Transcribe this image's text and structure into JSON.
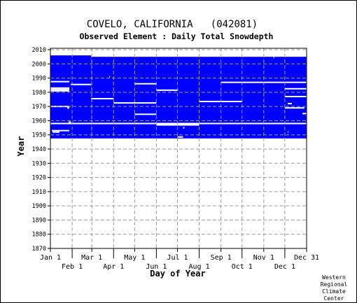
{
  "chart_data": {
    "type": "heatmap",
    "title": "COVELO, CALIFORNIA   (042081)",
    "subtitle": "Observed Element : Daily Total Snowdepth",
    "xlabel": "Day of Year",
    "ylabel": "Year",
    "xlim": [
      1,
      366
    ],
    "ylim": [
      1870,
      2011
    ],
    "y_ticks": [
      1870,
      1880,
      1890,
      1900,
      1910,
      1920,
      1930,
      1940,
      1950,
      1960,
      1970,
      1980,
      1990,
      2000,
      2010
    ],
    "x_ticks_top_row": [
      {
        "label": "Jan 1",
        "day": 1
      },
      {
        "label": "Mar 1",
        "day": 60
      },
      {
        "label": "May 1",
        "day": 121
      },
      {
        "label": "Jul 1",
        "day": 182
      },
      {
        "label": "Sep 1",
        "day": 244
      },
      {
        "label": "Nov 1",
        "day": 305
      },
      {
        "label": "Dec 31",
        "day": 366
      }
    ],
    "x_ticks_bottom_row": [
      {
        "label": "Feb 1",
        "day": 32
      },
      {
        "label": "Apr 1",
        "day": 91
      },
      {
        "label": "Jun 1",
        "day": 152
      },
      {
        "label": "Aug 1",
        "day": 213
      },
      {
        "label": "Oct 1",
        "day": 274
      },
      {
        "label": "Dec 1",
        "day": 335
      }
    ],
    "grid": true,
    "data_color": "#0000ff",
    "coverage_blocks": [
      {
        "day_start": 1,
        "day_end": 59,
        "year_start": 1947.5,
        "year_end": 2006
      },
      {
        "day_start": 59,
        "day_end": 366,
        "year_start": 1947.5,
        "year_end": 2005
      }
    ],
    "missing_segments": [
      {
        "year": 1987.5,
        "day_start": 1,
        "day_end": 28
      },
      {
        "year": 1985.5,
        "day_start": 30,
        "day_end": 59
      },
      {
        "year": 1983,
        "day_start": 1,
        "day_end": 28
      },
      {
        "year": 1982,
        "day_start": 1,
        "day_end": 28
      },
      {
        "year": 1981,
        "day_start": 1,
        "day_end": 28
      },
      {
        "year": 1970,
        "day_start": 1,
        "day_end": 28
      },
      {
        "year": 1969,
        "day_start": 25,
        "day_end": 28
      },
      {
        "year": 1958,
        "day_start": 1,
        "day_end": 366
      },
      {
        "year": 1959,
        "day_start": 27,
        "day_end": 30
      },
      {
        "year": 1953,
        "day_start": 3,
        "day_end": 28
      },
      {
        "year": 1952,
        "day_start": 4,
        "day_end": 14
      },
      {
        "year": 1975.5,
        "day_start": 59,
        "day_end": 91
      },
      {
        "year": 1972.5,
        "day_start": 91,
        "day_end": 152
      },
      {
        "year": 1986,
        "day_start": 121,
        "day_end": 152
      },
      {
        "year": 1964.5,
        "day_start": 121,
        "day_end": 152
      },
      {
        "year": 1981.5,
        "day_start": 152,
        "day_end": 183
      },
      {
        "year": 1957,
        "day_start": 152,
        "day_end": 213
      },
      {
        "year": 1955,
        "day_start": 190,
        "day_end": 192
      },
      {
        "year": 1948.5,
        "day_start": 182,
        "day_end": 190
      },
      {
        "year": 1973.5,
        "day_start": 213,
        "day_end": 274
      },
      {
        "year": 1987,
        "day_start": 244,
        "day_end": 366
      },
      {
        "year": 1982.5,
        "day_start": 335,
        "day_end": 366
      },
      {
        "year": 1977,
        "day_start": 335,
        "day_end": 366
      },
      {
        "year": 1969,
        "day_start": 335,
        "day_end": 363
      },
      {
        "year": 1972,
        "day_start": 339,
        "day_end": 345
      },
      {
        "year": 1965,
        "day_start": 360,
        "day_end": 366
      },
      {
        "year": 1991,
        "day_start": 85,
        "day_end": 86
      },
      {
        "year": 1952,
        "day_start": 339,
        "day_end": 340
      },
      {
        "year": 2004.5,
        "day_start": 319,
        "day_end": 320
      }
    ]
  },
  "footer": {
    "line1": "Western",
    "line2": "Regional",
    "line3": "Climate",
    "line4": "Center"
  }
}
